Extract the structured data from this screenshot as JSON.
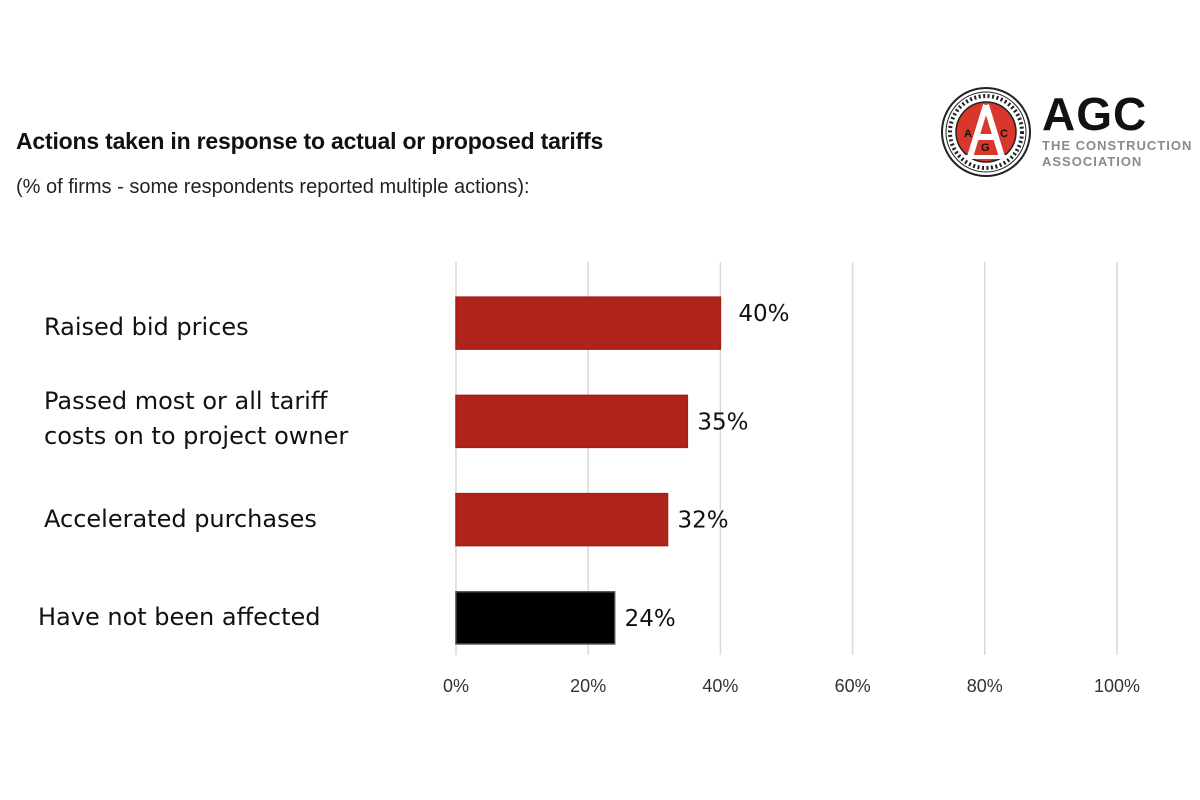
{
  "header": {
    "title": "Actions taken in response to actual or proposed tariffs",
    "subtitle": "(% of firms - some respondents reported multiple actions):"
  },
  "logo": {
    "wordmark": "AGC",
    "tagline_line1": "THE CONSTRUCTION",
    "tagline_line2": "ASSOCIATION",
    "seal_ring_text": "ASSOCIATED GENERAL CONTRACTORS OF AMERICA",
    "seal_letters": "AGC",
    "seal_color": "#d9372b"
  },
  "chart_data": {
    "type": "bar",
    "orientation": "horizontal",
    "title": "Actions taken in response to actual or proposed tariffs",
    "subtitle": "(% of firms - some respondents reported multiple actions):",
    "categories": [
      "Raised bid prices",
      "Passed most or all tariff costs on to project owner",
      "Accelerated purchases",
      "Have not been affected"
    ],
    "category_lines": [
      [
        "Raised bid prices"
      ],
      [
        "Passed most or all tariff",
        "costs on to project owner"
      ],
      [
        "Accelerated purchases"
      ],
      [
        "Have not been affected"
      ]
    ],
    "values": [
      40,
      35,
      32,
      24
    ],
    "data_labels": [
      "40%",
      "35%",
      "32%",
      "24%"
    ],
    "bar_colors": [
      "#b0231a",
      "#b0231a",
      "#b0231a",
      "#000000"
    ],
    "xlim": [
      0,
      100
    ],
    "xticks": [
      0,
      20,
      40,
      60,
      80,
      100
    ],
    "xtick_labels": [
      "0%",
      "20%",
      "40%",
      "60%",
      "80%",
      "100%"
    ],
    "xlabel": "",
    "ylabel": "",
    "grid": "vertical",
    "legend": "none"
  }
}
